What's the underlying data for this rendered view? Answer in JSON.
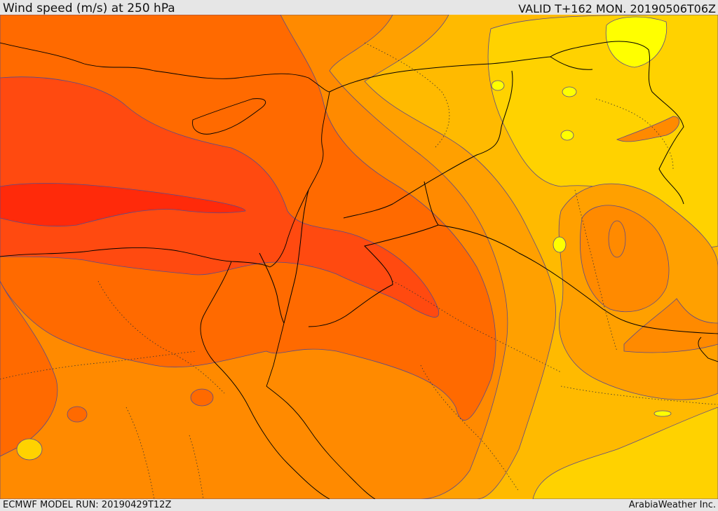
{
  "header": {
    "title": "Wind speed (m/s) at 250 hPa",
    "valid": "VALID T+162 MON. 20190506T06Z"
  },
  "footer": {
    "model_run": "ECMWF MODEL RUN: 20190429T12Z",
    "credit": "ArabiaWeather Inc."
  },
  "map": {
    "field": "wind speed",
    "level": "250 hPa",
    "palette": {
      "jet_core": "#ff2a0a",
      "very_high": "#ff4a10",
      "high": "#ff6a00",
      "medium_high": "#ff8a00",
      "medium": "#ffa000",
      "medium_low": "#ffba00",
      "low": "#ffd000",
      "very_low": "#ffe600",
      "minimum": "#ffff00"
    },
    "contour_color": "#5a4a8a",
    "border_color": "#000000"
  }
}
